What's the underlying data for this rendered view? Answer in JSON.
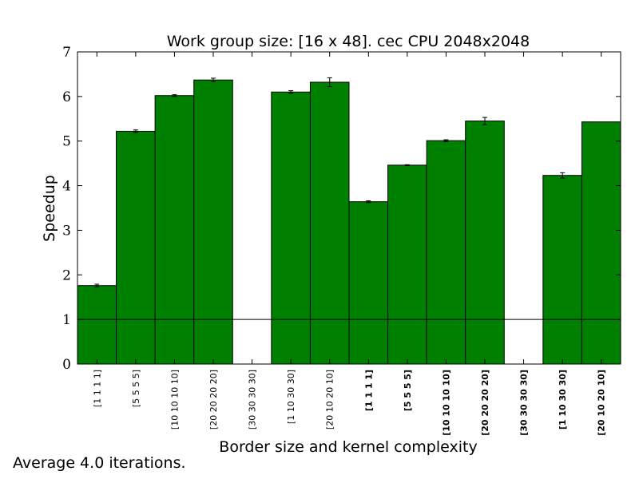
{
  "chart_data": {
    "type": "bar",
    "title": "Work group size: [16 x 48]. cec CPU 2048x2048",
    "xlabel": "Border size and kernel complexity",
    "ylabel": "Speedup",
    "ylim": [
      0,
      7
    ],
    "yticks": [
      0,
      1,
      2,
      3,
      4,
      5,
      6,
      7
    ],
    "reference_line": 1,
    "bar_color": "#008000",
    "categories": [
      "[1 1 1 1]",
      "[5 5 5 5]",
      "[10 10 10 10]",
      "[20 20 20 20]",
      "[30 30 30 30]",
      "[1 10 30 30]",
      "[20 10 20 10]",
      "[1 1 1 1]",
      "[5 5 5 5]",
      "[10 10 10 10]",
      "[20 20 20 20]",
      "[30 30 30 30]",
      "[1 10 30 30]",
      "[20 10 20 10]"
    ],
    "bold_labels": [
      false,
      false,
      false,
      false,
      false,
      false,
      false,
      true,
      true,
      true,
      true,
      true,
      true,
      true
    ],
    "values": [
      1.76,
      5.22,
      6.02,
      6.37,
      null,
      6.1,
      6.32,
      3.64,
      4.46,
      5.01,
      5.45,
      null,
      4.23,
      5.43
    ],
    "errors": [
      0.03,
      0.03,
      0.02,
      0.04,
      null,
      0.03,
      0.1,
      0.02,
      0.01,
      0.02,
      0.08,
      null,
      0.06,
      0.0
    ],
    "grid": false
  },
  "footnote": "Average 4.0 iterations."
}
